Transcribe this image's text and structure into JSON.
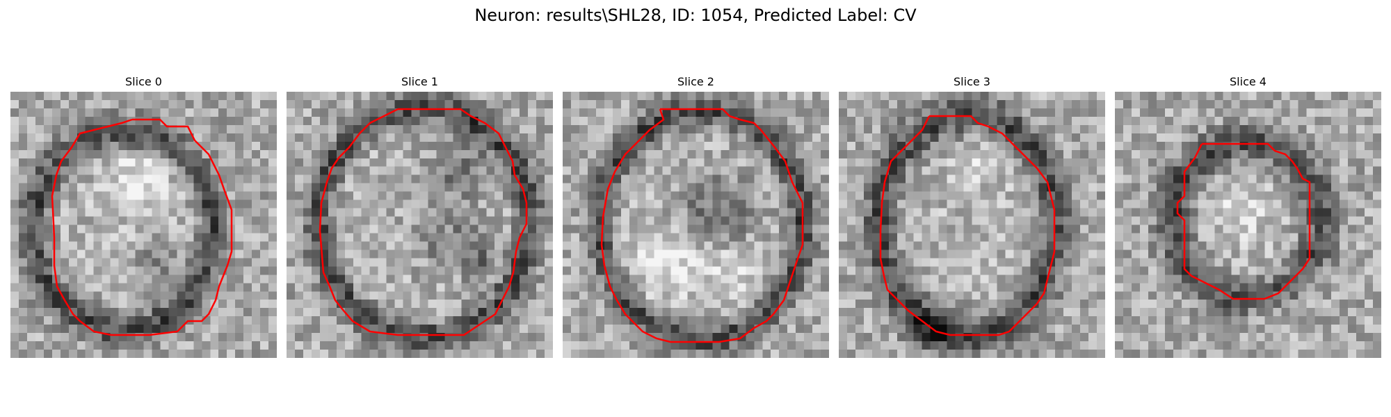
{
  "figure": {
    "title": "Neuron: results\\SHL28, ID: 1054, Predicted Label: CV"
  },
  "panels": [
    {
      "title": "Slice 0"
    },
    {
      "title": "Slice 1"
    },
    {
      "title": "Slice 2"
    },
    {
      "title": "Slice 3"
    },
    {
      "title": "Slice 4"
    }
  ],
  "contour_color": "#ff0000"
}
